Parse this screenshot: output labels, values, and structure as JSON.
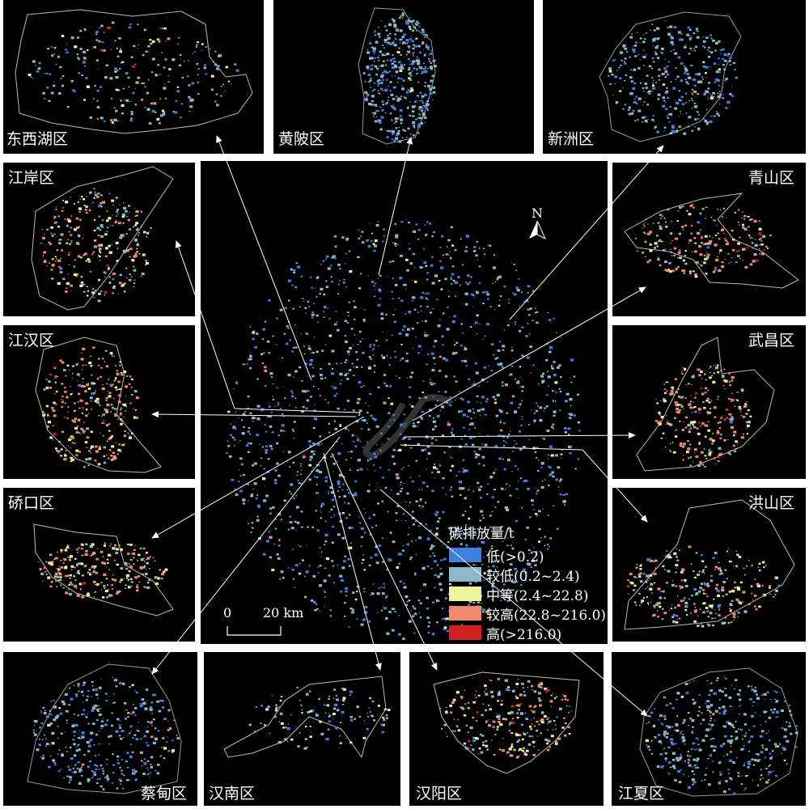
{
  "legend": {
    "title": "碳排放量/t",
    "items": [
      {
        "label": "低(>0.2)",
        "color": "#3f7fe0"
      },
      {
        "label": "较低(0.2~2.4)",
        "color": "#8fb8c8"
      },
      {
        "label": "中等(2.4~22.8)",
        "color": "#eef59a"
      },
      {
        "label": "较高(22.8~216.0)",
        "color": "#ef8a6e"
      },
      {
        "label": "高(>216.0)",
        "color": "#d21f1f"
      }
    ]
  },
  "north": "N",
  "scale": {
    "zero": "0",
    "distance": "20 km"
  },
  "districts": {
    "dongxihu": "东西湖区",
    "huangpi": "黄陂区",
    "xinzhou": "新洲区",
    "jiangan": "江岸区",
    "qingshan": "青山区",
    "jianghan": "江汉区",
    "wuchang": "武昌区",
    "qiaokou": "硚口区",
    "hongshan": "洪山区",
    "caidian": "蔡甸区",
    "hannan": "汉南区",
    "hanyang": "汉阳区",
    "jiangxia": "江夏区"
  }
}
